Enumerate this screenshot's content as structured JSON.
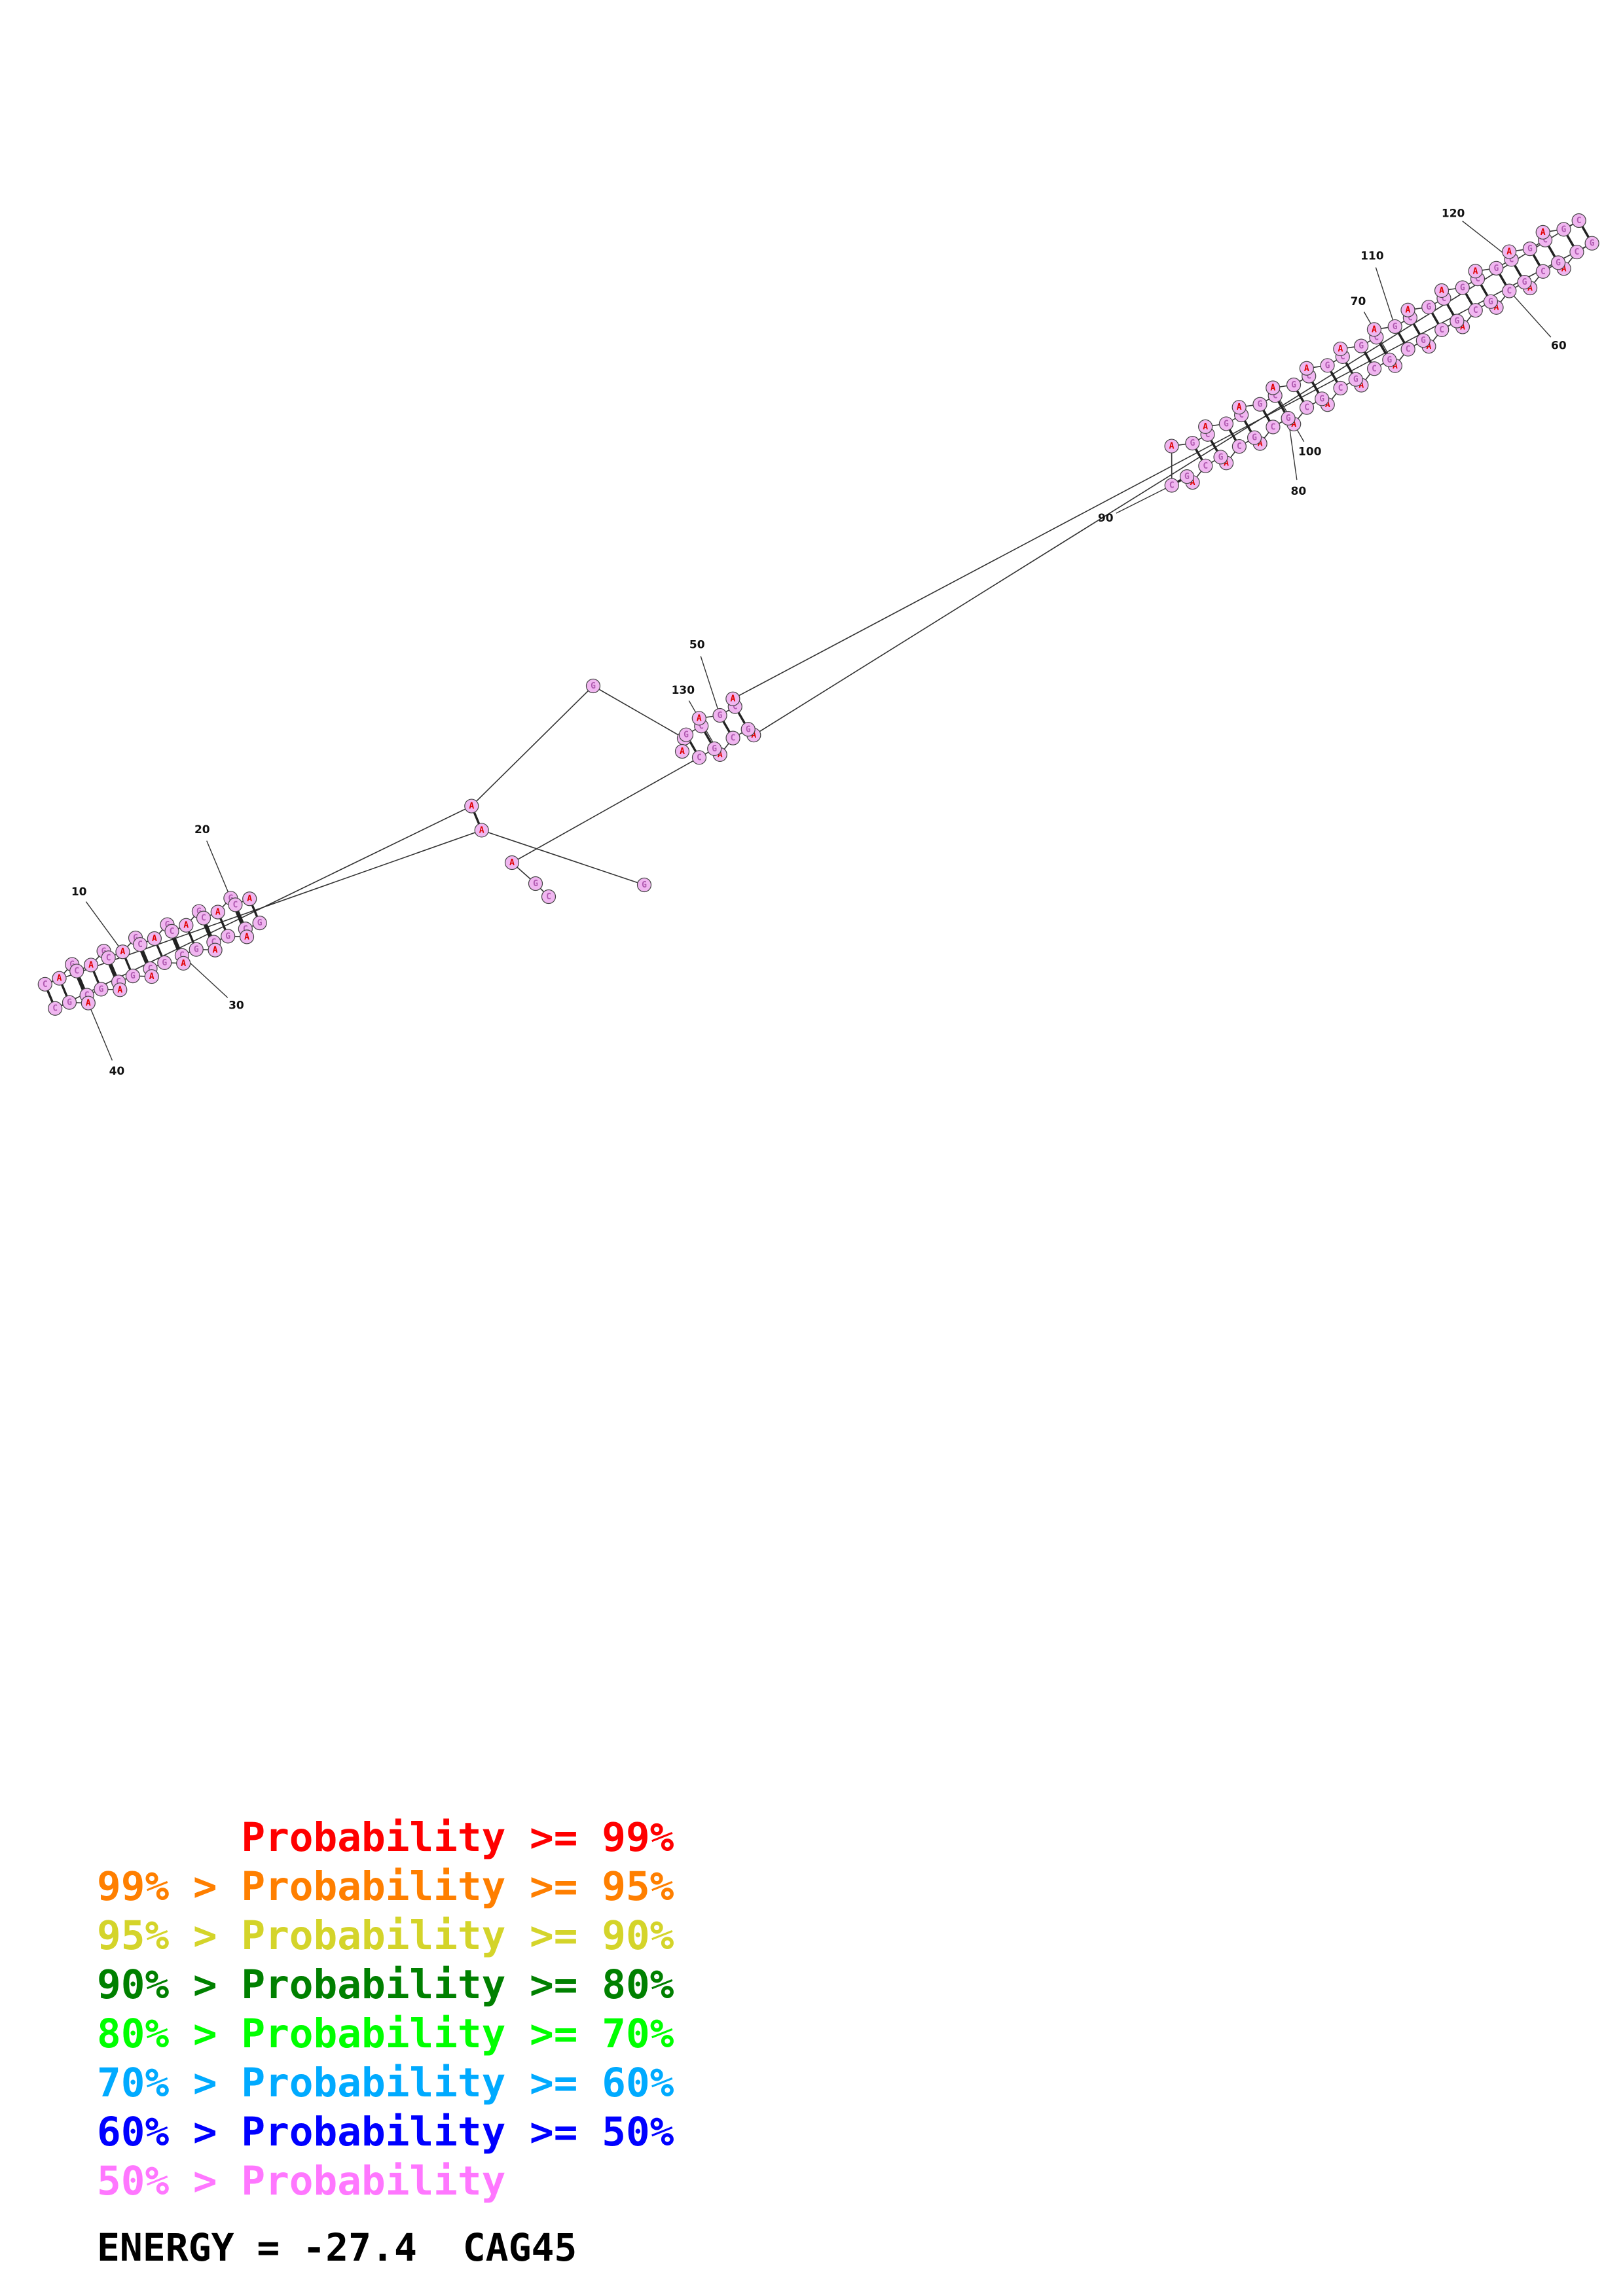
{
  "structure": {
    "sequence": "GACAGCAGCAGCAGCAGCAGCAGCAGCAGCAGCAGCAGCAGCAGCAGCAGCAGCAGCAGCAGCAGCAGCAGCAGCAGCAGCAGCAGCAGCAGCAGCAGCAGCAGCAGCAGCAGCAGCAGCAGCAGCAGCAGCAGC",
    "stem1_pairs": 14,
    "stem2_pairs": 27,
    "base_fill": "#f0b6f0",
    "letter_colors": {
      "A": "#e00000",
      "C": "#b05ab0",
      "G": "#b05ab0"
    },
    "position_labels": [
      "10",
      "20",
      "30",
      "40",
      "50",
      "60",
      "70",
      "80",
      "90",
      "100",
      "110",
      "120",
      "130"
    ]
  },
  "legend": [
    {
      "prefix": "",
      "text": "Probability >= 99%",
      "color": "#ff0000"
    },
    {
      "prefix": "99% > ",
      "text": "Probability >= 95%",
      "color": "#ff7f00"
    },
    {
      "prefix": "95% > ",
      "text": "Probability >= 90%",
      "color": "#d4d42a"
    },
    {
      "prefix": "90% > ",
      "text": "Probability >= 80%",
      "color": "#008000"
    },
    {
      "prefix": "80% > ",
      "text": "Probability >= 70%",
      "color": "#00ff00"
    },
    {
      "prefix": "70% > ",
      "text": "Probability >= 60%",
      "color": "#00aaff"
    },
    {
      "prefix": "60% > ",
      "text": "Probability >= 50%",
      "color": "#0000ff"
    },
    {
      "prefix": "50% > ",
      "text": "Probability",
      "color": "#ff77ff"
    }
  ],
  "footer": {
    "energy_label": "ENERGY = ",
    "energy_value": "-27.4",
    "name": "CAG45"
  }
}
